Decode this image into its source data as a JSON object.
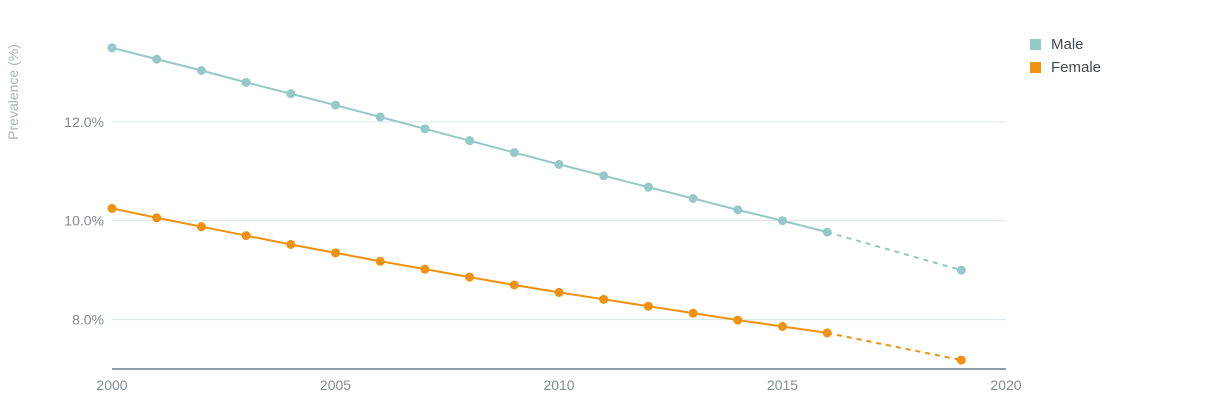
{
  "chart_data": {
    "type": "line",
    "ylabel": "Prevalence (%)",
    "xlabel": "",
    "xlim": [
      2000,
      2020
    ],
    "ylim": [
      7.0,
      13.9
    ],
    "x_ticks": [
      "2000",
      "2005",
      "2010",
      "2015",
      "2020"
    ],
    "x_tick_values": [
      2000,
      2005,
      2010,
      2015,
      2020
    ],
    "y_ticks": [
      "8.0%",
      "10.0%",
      "12.0%"
    ],
    "y_tick_values": [
      8.0,
      10.0,
      12.0
    ],
    "grid": "horizontal",
    "legend_position": "top-right",
    "series": [
      {
        "name": "Male",
        "color": "#94c9c8",
        "x": [
          2000,
          2001,
          2002,
          2003,
          2004,
          2005,
          2006,
          2007,
          2008,
          2009,
          2010,
          2011,
          2012,
          2013,
          2014,
          2015,
          2016,
          2019
        ],
        "values": [
          13.5,
          13.27,
          13.04,
          12.8,
          12.57,
          12.34,
          12.1,
          11.86,
          11.62,
          11.38,
          11.14,
          10.91,
          10.68,
          10.45,
          10.22,
          10.0,
          9.77,
          9.0
        ],
        "projected_from_x": 2016
      },
      {
        "name": "Female",
        "color": "#f0910f",
        "x": [
          2000,
          2001,
          2002,
          2003,
          2004,
          2005,
          2006,
          2007,
          2008,
          2009,
          2010,
          2011,
          2012,
          2013,
          2014,
          2015,
          2016,
          2019
        ],
        "values": [
          10.25,
          10.06,
          9.88,
          9.7,
          9.52,
          9.35,
          9.18,
          9.02,
          8.86,
          8.7,
          8.55,
          8.41,
          8.27,
          8.13,
          7.99,
          7.86,
          7.73,
          7.18
        ],
        "projected_from_x": 2016
      }
    ]
  }
}
